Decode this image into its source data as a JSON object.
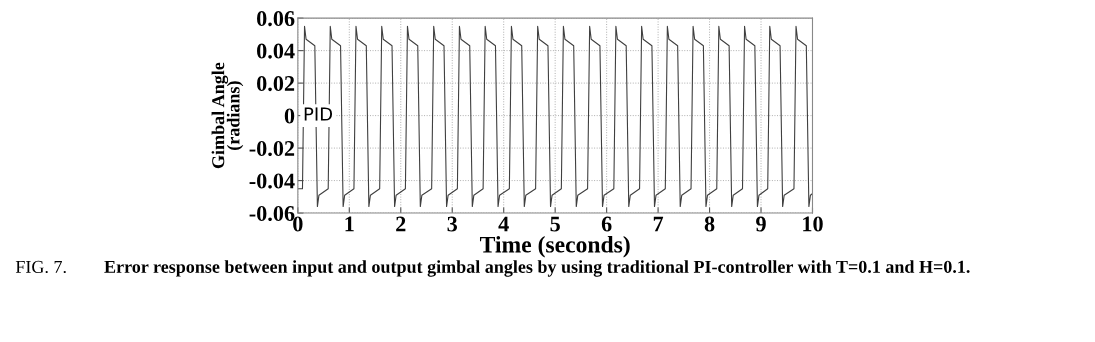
{
  "chart_data": {
    "type": "line",
    "xlabel": "Time (seconds)",
    "ylabel": "Gimbal Angle\n(radians)",
    "annotations": [
      "PID",
      "FIG. 7.",
      "Error response between input and output gimbal angles by using traditional PI-controller with T=0.1 and H=0.1."
    ],
    "xlim": [
      0,
      10
    ],
    "xticks": [
      0,
      1,
      2,
      3,
      4,
      5,
      6,
      7,
      8,
      9,
      10
    ],
    "ylim": [
      -0.06,
      0.06
    ],
    "yticks": [
      -0.06,
      -0.04,
      -0.02,
      0,
      0.02,
      0.04,
      0.06
    ],
    "grid": true,
    "legend": false,
    "marker": "none",
    "line_style": "solid",
    "series": [
      {
        "color": "#404040",
        "x": [
          0,
          0.09,
          0.13,
          0.16,
          0.33,
          0.38,
          0.41,
          0.59,
          0.63,
          0.66,
          0.83,
          0.88,
          0.91,
          1.09,
          1.13,
          1.16,
          1.33,
          1.38,
          1.41,
          1.59,
          1.63,
          1.66,
          1.83,
          1.88,
          1.91,
          2.09,
          2.13,
          2.16,
          2.33,
          2.38,
          2.41,
          2.6,
          2.64,
          2.67,
          2.84,
          2.89,
          2.92,
          3.1,
          3.14,
          3.17,
          3.34,
          3.39,
          3.42,
          3.6,
          3.64,
          3.67,
          3.84,
          3.89,
          3.92,
          4.11,
          4.15,
          4.18,
          4.35,
          4.4,
          4.43,
          4.62,
          4.66,
          4.69,
          4.86,
          4.91,
          4.94,
          5.12,
          5.16,
          5.19,
          5.36,
          5.41,
          5.44,
          5.63,
          5.67,
          5.7,
          5.87,
          5.92,
          5.95,
          6.14,
          6.18,
          6.21,
          6.38,
          6.43,
          6.46,
          6.64,
          6.68,
          6.71,
          6.88,
          6.93,
          6.96,
          7.14,
          7.18,
          7.21,
          7.38,
          7.43,
          7.46,
          7.64,
          7.68,
          7.71,
          7.88,
          7.93,
          7.96,
          8.14,
          8.18,
          8.21,
          8.38,
          8.43,
          8.46,
          8.64,
          8.68,
          8.71,
          8.88,
          8.93,
          8.96,
          9.13,
          9.17,
          9.2,
          9.37,
          9.42,
          9.45,
          9.64,
          9.68,
          9.71,
          9.88,
          9.93,
          9.96,
          10
        ],
        "values": [
          -0.045,
          -0.045,
          0.055,
          0.047,
          0.043,
          -0.056,
          -0.049,
          -0.045,
          0.055,
          0.047,
          0.043,
          -0.056,
          -0.049,
          -0.045,
          0.055,
          0.047,
          0.043,
          -0.056,
          -0.049,
          -0.045,
          0.055,
          0.047,
          0.043,
          -0.056,
          -0.049,
          -0.045,
          0.055,
          0.047,
          0.043,
          -0.056,
          -0.049,
          -0.045,
          0.055,
          0.047,
          0.043,
          -0.056,
          -0.049,
          -0.045,
          0.055,
          0.047,
          0.043,
          -0.056,
          -0.049,
          -0.045,
          0.055,
          0.047,
          0.043,
          -0.056,
          -0.049,
          -0.045,
          0.055,
          0.047,
          0.043,
          -0.056,
          -0.049,
          -0.045,
          0.055,
          0.047,
          0.043,
          -0.056,
          -0.049,
          -0.045,
          0.055,
          0.047,
          0.043,
          -0.056,
          -0.049,
          -0.045,
          0.055,
          0.047,
          0.043,
          -0.056,
          -0.049,
          -0.045,
          0.055,
          0.047,
          0.043,
          -0.056,
          -0.049,
          -0.045,
          0.055,
          0.047,
          0.043,
          -0.056,
          -0.049,
          -0.045,
          0.055,
          0.047,
          0.043,
          -0.056,
          -0.049,
          -0.045,
          0.055,
          0.047,
          0.043,
          -0.056,
          -0.049,
          -0.045,
          0.055,
          0.047,
          0.043,
          -0.056,
          -0.049,
          -0.045,
          0.055,
          0.047,
          0.043,
          -0.056,
          -0.049,
          -0.045,
          0.055,
          0.047,
          0.043,
          -0.056,
          -0.049,
          -0.045,
          0.055,
          0.047,
          0.043,
          -0.056,
          -0.049,
          -0.048
        ]
      }
    ]
  }
}
